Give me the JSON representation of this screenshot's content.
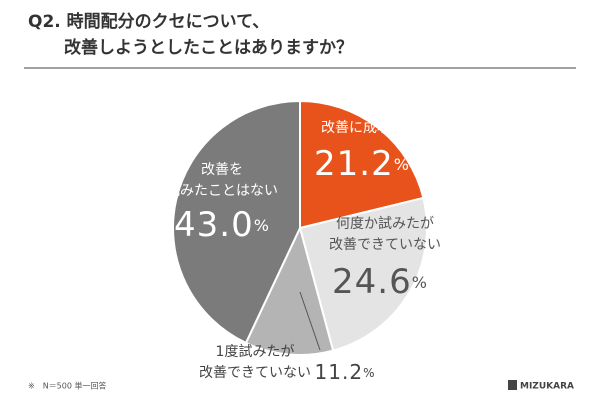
{
  "chart_data": {
    "type": "pie",
    "title_lines": [
      "Q2. 時間配分のクセについて、",
      "改善しようとしたことはありますか？"
    ],
    "categories": [
      "改善に成功した",
      "何度か試みたが\n改善できていない",
      "1度試みたが\n改善できていない",
      "改善を\n試みたことはない"
    ],
    "values": [
      21.2,
      24.6,
      11.2,
      43.0
    ],
    "value_labels": [
      "21.2%",
      "24.6%",
      "11.2%",
      "43.0%"
    ],
    "colors": [
      "#e8531c",
      "#e4e4e4",
      "#b4b4b4",
      "#7b7b7b"
    ],
    "footnote": "※　N＝500 単一回答",
    "brand": "MIZUKARA"
  }
}
